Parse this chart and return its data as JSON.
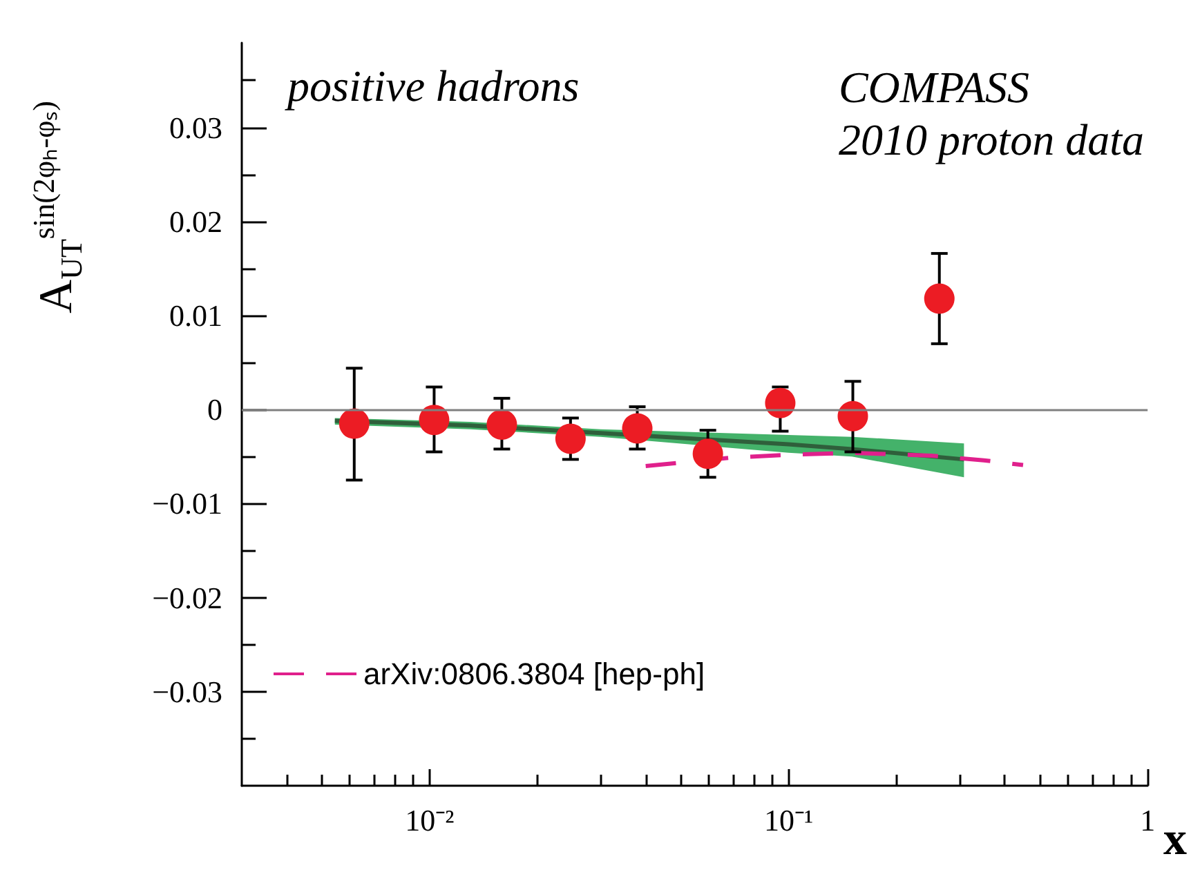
{
  "chart_data": {
    "type": "scatter",
    "ylabel": "A$_{UT}$$^{sin(2φₕ-φₛ)}$",
    "xlabel": "x",
    "annotations": [
      "positive hadrons",
      "COMPASS\n2010 proton data"
    ],
    "log": "x",
    "xlim": [
      0.003,
      1
    ],
    "ylim": [
      -0.04,
      0.039
    ],
    "xticks": [
      {
        "value": 0.004,
        "label": null
      },
      {
        "value": 0.005,
        "label": null
      },
      {
        "value": 0.006,
        "label": null
      },
      {
        "value": 0.007,
        "label": null
      },
      {
        "value": 0.008,
        "label": null
      },
      {
        "value": 0.009,
        "label": null
      },
      {
        "value": 0.01,
        "label": "10⁻²"
      },
      {
        "value": 0.02,
        "label": null
      },
      {
        "value": 0.03,
        "label": null
      },
      {
        "value": 0.04,
        "label": null
      },
      {
        "value": 0.05,
        "label": null
      },
      {
        "value": 0.06,
        "label": null
      },
      {
        "value": 0.07,
        "label": null
      },
      {
        "value": 0.08,
        "label": null
      },
      {
        "value": 0.09,
        "label": null
      },
      {
        "value": 0.1,
        "label": "10⁻¹"
      },
      {
        "value": 0.2,
        "label": null
      },
      {
        "value": 0.3,
        "label": null
      },
      {
        "value": 0.4,
        "label": null
      },
      {
        "value": 0.5,
        "label": null
      },
      {
        "value": 0.6,
        "label": null
      },
      {
        "value": 0.7,
        "label": null
      },
      {
        "value": 0.8,
        "label": null
      },
      {
        "value": 0.9,
        "label": null
      },
      1
    ],
    "yticks": [
      {
        "value": -0.035,
        "label": null
      },
      {
        "value": -0.03,
        "label": "−0.03"
      },
      {
        "value": -0.025,
        "label": null
      },
      {
        "value": -0.02,
        "label": "−0.02"
      },
      {
        "value": -0.015,
        "label": null
      },
      {
        "value": -0.01,
        "label": "−0.01"
      },
      {
        "value": -0.005,
        "label": null
      },
      0,
      {
        "value": 0.005,
        "label": null
      },
      0.01,
      {
        "value": 0.015,
        "label": null
      },
      0.02,
      {
        "value": 0.025,
        "label": null
      },
      0.03,
      {
        "value": 0.035,
        "label": null
      }
    ],
    "grid": false,
    "legend": "bottom left",
    "ref_lines": [
      {
        "axis": "y",
        "value": 0,
        "color": "#808080"
      }
    ],
    "series": [
      {
        "type": "line",
        "color": "#2f5f3b",
        "x": [
          0.00545,
          0.013,
          0.03,
          0.1,
          0.15,
          0.308
        ],
        "values": [
          -0.0012,
          -0.0017,
          -0.0025,
          -0.0037,
          -0.0042,
          -0.0053
        ],
        "lower": [
          -0.0016,
          -0.0021,
          -0.0029,
          -0.0046,
          -0.005,
          -0.0072
        ],
        "upper": [
          -0.0009,
          -0.0013,
          -0.0021,
          -0.0027,
          -0.0029,
          -0.0036
        ]
      },
      {
        "type": "line",
        "name": "arXiv:0806.3804 [hep-ph]",
        "color": "#e0208c",
        "line_style": "dashed",
        "x": [
          0.04,
          0.07,
          0.1,
          0.15,
          0.25,
          0.35,
          0.45
        ],
        "values": [
          -0.006,
          -0.0051,
          -0.0048,
          -0.0046,
          -0.0049,
          -0.0054,
          -0.0059
        ]
      },
      {
        "marker": "circle",
        "color": "#ec1c24",
        "x": [
          0.00617,
          0.0103,
          0.0159,
          0.0247,
          0.0379,
          0.0596,
          0.0948,
          0.151,
          0.263
        ],
        "values": [
          -0.0015,
          -0.0011,
          -0.0016,
          -0.0031,
          -0.002,
          -0.0047,
          0.0007,
          -0.0007,
          0.0118
        ],
        "errors": [
          [
            -0.0075,
            0.0044
          ],
          [
            -0.0045,
            0.0024
          ],
          [
            -0.0042,
            0.0012
          ],
          0.0022,
          [
            -0.0042,
            0.0003
          ],
          0.0025,
          [
            -0.0023,
            0.0024
          ],
          [
            -0.0045,
            0.003
          ],
          0.0048
        ]
      }
    ]
  }
}
